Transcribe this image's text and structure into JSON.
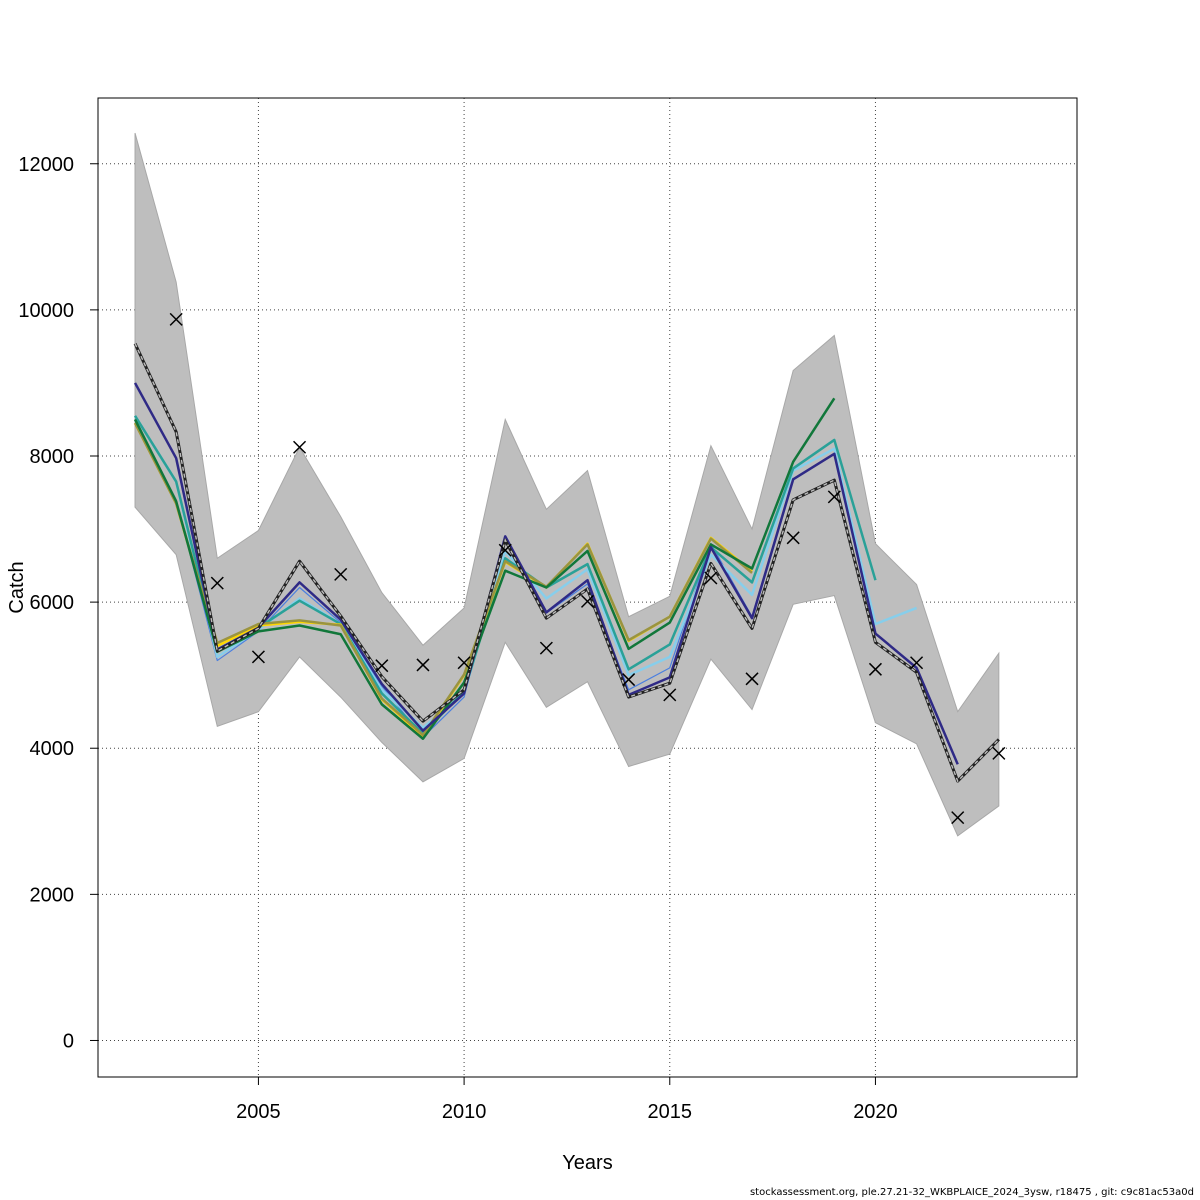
{
  "footer": "stockassessment.org, ple.27.21-32_WKBPLAICE_2024_3ysw, r18475 , git: c9c81ac53a0d",
  "chart_data": {
    "type": "line",
    "title": "",
    "xlabel": "Years",
    "ylabel": "Catch",
    "xlim": [
      2001.1,
      2024.9
    ],
    "ylim": [
      -500,
      12900
    ],
    "xticks": [
      2005,
      2010,
      2015,
      2020
    ],
    "yticks": [
      0,
      2000,
      4000,
      6000,
      8000,
      10000,
      12000
    ],
    "grid": true,
    "colors": {
      "band": "#bebebe",
      "observed": "#000000",
      "grid": "#444444",
      "series": [
        "#4a7fe0",
        "#87ceeb",
        "#2aa198",
        "#ffd700",
        "#9a9440",
        "#11773a",
        "#2f2a86"
      ]
    },
    "band": {
      "x": [
        2002,
        2003,
        2004,
        2005,
        2006,
        2007,
        2008,
        2009,
        2010,
        2011,
        2012,
        2013,
        2014,
        2015,
        2016,
        2017,
        2018,
        2019,
        2020,
        2021,
        2022,
        2023
      ],
      "lower": [
        7300,
        6650,
        4300,
        4500,
        5250,
        4700,
        4080,
        3540,
        3860,
        5450,
        4560,
        4910,
        3750,
        3920,
        5220,
        4530,
        5970,
        6090,
        4350,
        4060,
        2800,
        3210
      ],
      "upper": [
        12420,
        10380,
        6600,
        6980,
        8120,
        7170,
        6130,
        5410,
        5920,
        8500,
        7270,
        7800,
        5800,
        6080,
        8140,
        7000,
        9170,
        9650,
        6800,
        6240,
        4500,
        5300
      ]
    },
    "observed": {
      "x": [
        2003,
        2004,
        2005,
        2006,
        2007,
        2008,
        2009,
        2010,
        2011,
        2012,
        2013,
        2014,
        2015,
        2016,
        2017,
        2018,
        2019,
        2020,
        2021,
        2022,
        2023
      ],
      "y": [
        9870,
        6260,
        5250,
        8120,
        6380,
        5130,
        5140,
        5170,
        6710,
        5370,
        6010,
        4940,
        4730,
        6330,
        4950,
        6880,
        7440,
        5080,
        5170,
        3050,
        3930
      ]
    },
    "estimate": {
      "x": [
        2002,
        2003,
        2004,
        2005,
        2006,
        2007,
        2008,
        2009,
        2010,
        2011,
        2012,
        2013,
        2014,
        2015,
        2016,
        2017,
        2018,
        2019,
        2020,
        2021,
        2022,
        2023
      ],
      "y": [
        9540,
        8330,
        5330,
        5640,
        6560,
        5810,
        4980,
        4370,
        4800,
        6850,
        5780,
        6180,
        4700,
        4890,
        6530,
        5640,
        7400,
        7670,
        5450,
        5040,
        3550,
        4120
      ]
    },
    "series": [
      {
        "x": [
          2002,
          2003,
          2004,
          2005,
          2006,
          2007,
          2008,
          2009,
          2010,
          2011,
          2012,
          2013,
          2014,
          2015,
          2016,
          2017,
          2018
        ],
        "values": [
          8500,
          7400,
          5200,
          5600,
          6200,
          5720,
          4850,
          4150,
          4700,
          6900,
          5850,
          6250,
          4800,
          5100,
          6800,
          5800,
          7700
        ]
      },
      {
        "x": [
          2002,
          2003,
          2004,
          2005,
          2006,
          2007,
          2008,
          2009,
          2010,
          2011,
          2012,
          2013,
          2014,
          2015,
          2016,
          2017,
          2018,
          2019,
          2020,
          2021
        ],
        "values": [
          8550,
          7650,
          5250,
          5620,
          6050,
          5700,
          4800,
          4280,
          4750,
          6700,
          6050,
          6450,
          5000,
          5250,
          6650,
          6100,
          7800,
          8100,
          5700,
          5920
        ]
      },
      {
        "x": [
          2002,
          2003,
          2004,
          2005,
          2006,
          2007,
          2008,
          2009,
          2010,
          2011,
          2012,
          2013,
          2014,
          2015,
          2016,
          2017,
          2018,
          2019,
          2020
        ],
        "values": [
          8550,
          7650,
          5350,
          5650,
          6020,
          5700,
          4750,
          4200,
          4780,
          6600,
          6200,
          6520,
          5080,
          5420,
          6750,
          6270,
          7830,
          8220,
          6300
        ]
      },
      {
        "x": [
          2002,
          2003,
          2004,
          2005,
          2006,
          2007,
          2008,
          2009,
          2010,
          2011,
          2012,
          2013,
          2014,
          2015,
          2016,
          2017
        ],
        "values": [
          8450,
          7350,
          5400,
          5680,
          5730,
          5690,
          4670,
          4160,
          5000,
          6550,
          6200,
          6800,
          5470,
          5800,
          6880,
          6420
        ]
      },
      {
        "x": [
          2002,
          2003,
          2004,
          2005,
          2006,
          2007,
          2008,
          2009,
          2010,
          2011,
          2012,
          2013,
          2014,
          2015,
          2016,
          2017
        ],
        "values": [
          8450,
          7350,
          5440,
          5700,
          5750,
          5680,
          4680,
          4180,
          5010,
          6560,
          6210,
          6790,
          5480,
          5800,
          6870,
          6400
        ]
      },
      {
        "x": [
          2002,
          2003,
          2004,
          2005,
          2006,
          2007,
          2008,
          2009,
          2010,
          2011,
          2012,
          2013,
          2014,
          2015,
          2016,
          2017,
          2018,
          2019
        ],
        "values": [
          8500,
          7380,
          5320,
          5600,
          5680,
          5560,
          4600,
          4130,
          4900,
          6430,
          6200,
          6700,
          5360,
          5720,
          6790,
          6460,
          7920,
          8790
        ]
      },
      {
        "x": [
          2002,
          2003,
          2004,
          2005,
          2006,
          2007,
          2008,
          2009,
          2010,
          2011,
          2012,
          2013,
          2014,
          2015,
          2016,
          2017,
          2018,
          2019,
          2020,
          2021,
          2022
        ],
        "values": [
          9000,
          7970,
          5350,
          5650,
          6270,
          5760,
          4880,
          4240,
          4750,
          6900,
          5860,
          6300,
          4730,
          4970,
          6750,
          5780,
          7680,
          8030,
          5570,
          5100,
          3780
        ]
      }
    ]
  }
}
